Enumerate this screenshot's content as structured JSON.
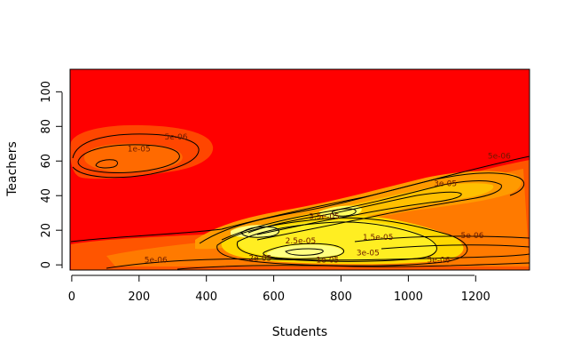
{
  "chart_data": {
    "type": "heatmap",
    "subtype": "filled-density-contour",
    "title": "",
    "xlabel": "Students",
    "ylabel": "Teachers",
    "xlim": [
      -5,
      1360
    ],
    "ylim": [
      -3,
      113
    ],
    "xticks": [
      0,
      200,
      400,
      600,
      800,
      1000,
      1200
    ],
    "yticks": [
      0,
      20,
      40,
      60,
      80,
      100
    ],
    "grid": false,
    "legend": "none",
    "colormap": [
      "#ff0000",
      "#ff5a00",
      "#ff9a00",
      "#ffc800",
      "#ffee22",
      "#ffff80"
    ],
    "contour_labels": [
      {
        "label": "5e-06",
        "x": 310,
        "y": 74
      },
      {
        "label": "1e-05",
        "x": 200,
        "y": 67
      },
      {
        "label": "5e-06",
        "x": 1270,
        "y": 63
      },
      {
        "label": "3e-05",
        "x": 1110,
        "y": 47
      },
      {
        "label": "3.5e-05",
        "x": 750,
        "y": 28
      },
      {
        "label": "2.5e-05",
        "x": 680,
        "y": 14
      },
      {
        "label": "1.5e-05",
        "x": 910,
        "y": 16
      },
      {
        "label": "5e-06",
        "x": 1190,
        "y": 17
      },
      {
        "label": "3e-05",
        "x": 880,
        "y": 7
      },
      {
        "label": "5e-06",
        "x": 250,
        "y": 3
      },
      {
        "label": "2e-05",
        "x": 560,
        "y": 4
      },
      {
        "label": "1e-05",
        "x": 760,
        "y": 3
      },
      {
        "label": "5e-06",
        "x": 1090,
        "y": 3
      }
    ]
  }
}
